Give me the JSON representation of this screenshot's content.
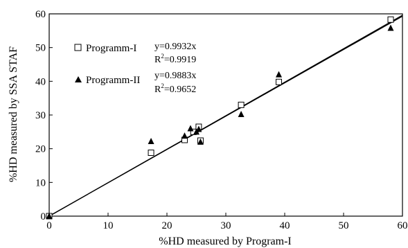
{
  "chart_data": {
    "type": "scatter",
    "xlabel": "%HD measured by Program-I",
    "ylabel": "%HD measured by SSA STAF",
    "xlim": [
      0,
      60
    ],
    "ylim": [
      0,
      60
    ],
    "xticks": [
      "0",
      "10",
      "20",
      "30",
      "40",
      "50",
      "60"
    ],
    "yticks": [
      "0",
      "10",
      "20",
      "30",
      "40",
      "50",
      "60"
    ],
    "grid": false,
    "legend_position": "top-left",
    "series": [
      {
        "name": "Programm-I",
        "marker": "open-square",
        "equation": "y=0.9932x",
        "r2_label": "R",
        "r2_value": "=0.9919",
        "fit_slope": 0.9932,
        "points": [
          [
            0,
            0
          ],
          [
            17.3,
            18.8
          ],
          [
            23.0,
            22.6
          ],
          [
            24.5,
            25.0
          ],
          [
            25.4,
            26.5
          ],
          [
            25.7,
            22.4
          ],
          [
            32.6,
            33.0
          ],
          [
            39.0,
            39.8
          ],
          [
            58.0,
            58.3
          ]
        ]
      },
      {
        "name": "Programm-II",
        "marker": "filled-triangle",
        "equation": "y=0.9883x",
        "r2_label": "R",
        "r2_value": "=0.9652",
        "fit_slope": 0.9883,
        "points": [
          [
            0,
            0
          ],
          [
            17.3,
            22.2
          ],
          [
            23.0,
            23.8
          ],
          [
            24.0,
            26.0
          ],
          [
            25.0,
            25.0
          ],
          [
            25.4,
            25.8
          ],
          [
            25.7,
            22.0
          ],
          [
            32.6,
            30.2
          ],
          [
            39.0,
            42.0
          ],
          [
            58.0,
            55.8
          ]
        ]
      }
    ]
  }
}
